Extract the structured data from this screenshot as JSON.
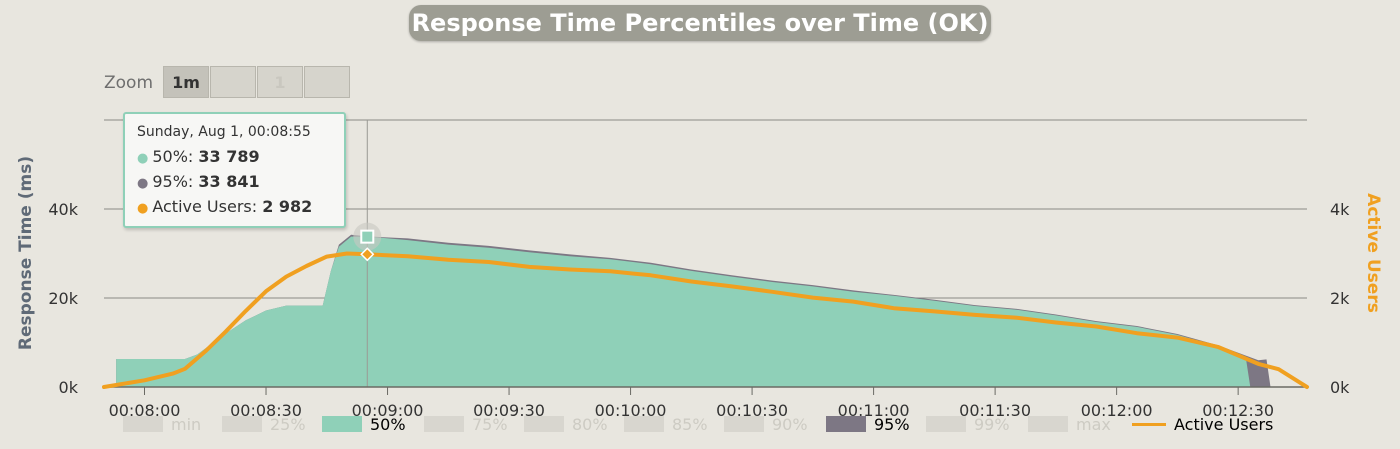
{
  "title": "Response Time Percentiles over Time (OK)",
  "zoom": {
    "label": "Zoom",
    "buttons": [
      {
        "label": "1m",
        "active": true
      },
      {
        "label": "",
        "active": false
      },
      {
        "label": "1",
        "active": false
      },
      {
        "label": "",
        "active": false
      }
    ]
  },
  "tooltip": {
    "date": "Sunday, Aug 1, 00:08:55",
    "rows": [
      {
        "label": "50%: ",
        "value": "33 789",
        "color": "#8fd0b8"
      },
      {
        "label": "95%: ",
        "value": "33 841",
        "color": "#7d7784"
      },
      {
        "label": "Active Users: ",
        "value": "2 982",
        "color": "#f0a020"
      }
    ]
  },
  "legend": [
    {
      "label": "min",
      "color": "#d8d6cf",
      "visible": false
    },
    {
      "label": "25%",
      "color": "#d8d6cf",
      "visible": false
    },
    {
      "label": "50%",
      "color": "#8fd0b8",
      "visible": true
    },
    {
      "label": "75%",
      "color": "#d8d6cf",
      "visible": false
    },
    {
      "label": "80%",
      "color": "#d8d6cf",
      "visible": false
    },
    {
      "label": "85%",
      "color": "#d8d6cf",
      "visible": false
    },
    {
      "label": "90%",
      "color": "#d8d6cf",
      "visible": false
    },
    {
      "label": "95%",
      "color": "#7d7784",
      "visible": true
    },
    {
      "label": "99%",
      "color": "#d8d6cf",
      "visible": false
    },
    {
      "label": "max",
      "color": "#d8d6cf",
      "visible": false
    },
    {
      "label": "Active Users",
      "color": "#f0a020",
      "visible": true,
      "line": true
    }
  ],
  "chart_data": {
    "type": "area",
    "title": "Response Time Percentiles over Time (OK)",
    "ylabel": "Response Time (ms)",
    "y2label": "Active Users",
    "ylim": [
      0,
      60000
    ],
    "y2lim": [
      0,
      6000
    ],
    "yticks": [
      {
        "value": 0,
        "label": "0k"
      },
      {
        "value": 20000,
        "label": "20k"
      },
      {
        "value": 40000,
        "label": "40k"
      }
    ],
    "y2ticks": [
      {
        "value": 0,
        "label": "0k"
      },
      {
        "value": 2000,
        "label": "2k"
      },
      {
        "value": 4000,
        "label": "4k"
      }
    ],
    "xlim_seconds": [
      470,
      767
    ],
    "xticks": [
      {
        "t": 480,
        "label": "00:08:00"
      },
      {
        "t": 510,
        "label": "00:08:30"
      },
      {
        "t": 540,
        "label": "00:09:00"
      },
      {
        "t": 570,
        "label": "00:09:30"
      },
      {
        "t": 600,
        "label": "00:10:00"
      },
      {
        "t": 630,
        "label": "00:10:30"
      },
      {
        "t": 660,
        "label": "00:11:00"
      },
      {
        "t": 690,
        "label": "00:11:30"
      },
      {
        "t": 720,
        "label": "00:12:00"
      },
      {
        "t": 750,
        "label": "00:12:30"
      }
    ],
    "highlight_t": 535,
    "series": [
      {
        "name": "95%",
        "color": "#7d7784",
        "axis": "left",
        "points": [
          [
            473,
            6300
          ],
          [
            490,
            6300
          ],
          [
            493,
            7300
          ],
          [
            500,
            12000
          ],
          [
            505,
            15000
          ],
          [
            510,
            17200
          ],
          [
            515,
            18300
          ],
          [
            524,
            18300
          ],
          [
            526,
            26000
          ],
          [
            528,
            32000
          ],
          [
            531,
            34200
          ],
          [
            535,
            33841
          ],
          [
            545,
            33400
          ],
          [
            555,
            32400
          ],
          [
            565,
            31700
          ],
          [
            575,
            30700
          ],
          [
            585,
            29800
          ],
          [
            595,
            29000
          ],
          [
            605,
            27900
          ],
          [
            615,
            26400
          ],
          [
            625,
            25100
          ],
          [
            635,
            23900
          ],
          [
            645,
            22900
          ],
          [
            655,
            21700
          ],
          [
            665,
            20700
          ],
          [
            675,
            19600
          ],
          [
            685,
            18400
          ],
          [
            695,
            17600
          ],
          [
            705,
            16300
          ],
          [
            715,
            14800
          ],
          [
            725,
            13700
          ],
          [
            735,
            11900
          ],
          [
            745,
            9400
          ],
          [
            755,
            6000
          ],
          [
            757,
            6200
          ],
          [
            758,
            0
          ],
          [
            758.1,
            0
          ]
        ]
      },
      {
        "name": "50%",
        "color": "#8fd0b8",
        "axis": "left",
        "points": [
          [
            473,
            6300
          ],
          [
            490,
            6300
          ],
          [
            493,
            7300
          ],
          [
            500,
            12000
          ],
          [
            505,
            15000
          ],
          [
            510,
            17200
          ],
          [
            515,
            18300
          ],
          [
            524,
            18300
          ],
          [
            526,
            26000
          ],
          [
            528,
            31500
          ],
          [
            531,
            33800
          ],
          [
            535,
            33789
          ],
          [
            545,
            33000
          ],
          [
            555,
            32000
          ],
          [
            565,
            31300
          ],
          [
            575,
            30300
          ],
          [
            585,
            29400
          ],
          [
            595,
            28700
          ],
          [
            605,
            27600
          ],
          [
            615,
            26100
          ],
          [
            625,
            24800
          ],
          [
            635,
            23600
          ],
          [
            645,
            22600
          ],
          [
            655,
            21400
          ],
          [
            665,
            20500
          ],
          [
            675,
            19400
          ],
          [
            685,
            18200
          ],
          [
            695,
            17400
          ],
          [
            705,
            16100
          ],
          [
            715,
            14600
          ],
          [
            725,
            13500
          ],
          [
            735,
            11700
          ],
          [
            745,
            9200
          ],
          [
            752,
            6000
          ],
          [
            753,
            0
          ],
          [
            758,
            0
          ]
        ]
      },
      {
        "name": "Active Users",
        "color": "#f0a020",
        "axis": "right",
        "points": [
          [
            470,
            0
          ],
          [
            480,
            150
          ],
          [
            487,
            300
          ],
          [
            490,
            410
          ],
          [
            495,
            800
          ],
          [
            500,
            1240
          ],
          [
            505,
            1710
          ],
          [
            510,
            2150
          ],
          [
            515,
            2480
          ],
          [
            520,
            2720
          ],
          [
            525,
            2930
          ],
          [
            530,
            3000
          ],
          [
            535,
            2982
          ],
          [
            545,
            2940
          ],
          [
            555,
            2860
          ],
          [
            565,
            2810
          ],
          [
            575,
            2700
          ],
          [
            585,
            2640
          ],
          [
            595,
            2600
          ],
          [
            605,
            2510
          ],
          [
            615,
            2370
          ],
          [
            625,
            2260
          ],
          [
            635,
            2140
          ],
          [
            645,
            2010
          ],
          [
            655,
            1920
          ],
          [
            665,
            1770
          ],
          [
            675,
            1700
          ],
          [
            685,
            1620
          ],
          [
            695,
            1560
          ],
          [
            705,
            1450
          ],
          [
            715,
            1360
          ],
          [
            725,
            1210
          ],
          [
            735,
            1110
          ],
          [
            745,
            900
          ],
          [
            755,
            520
          ],
          [
            760,
            400
          ],
          [
            767,
            0
          ]
        ]
      }
    ]
  }
}
